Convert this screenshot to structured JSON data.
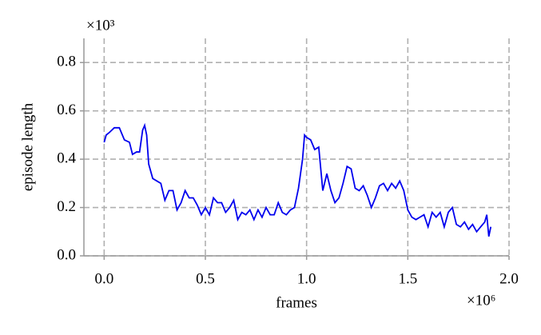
{
  "chart_data": {
    "type": "line",
    "xlabel": "frames",
    "ylabel": "episode length",
    "x_multiplier": "×10⁶",
    "y_multiplier": "×10³",
    "xlim": [
      -0.1,
      2.0
    ],
    "ylim": [
      0,
      0.9
    ],
    "xticks": [
      {
        "value": 0,
        "label": "0.0"
      },
      0.5,
      {
        "value": 1,
        "label": "1.0"
      },
      1.5,
      {
        "value": 2,
        "label": "2.0"
      }
    ],
    "yticks": [
      {
        "value": 0,
        "label": "0.0"
      },
      0.2,
      0.4,
      0.6,
      0.8
    ],
    "grid": true,
    "series": [
      {
        "color": "#0000ee",
        "x": [
          0.0,
          0.01,
          0.025,
          0.05,
          0.075,
          0.1,
          0.125,
          0.14,
          0.16,
          0.175,
          0.19,
          0.2,
          0.21,
          0.22,
          0.24,
          0.26,
          0.28,
          0.3,
          0.32,
          0.34,
          0.36,
          0.38,
          0.4,
          0.42,
          0.44,
          0.46,
          0.48,
          0.5,
          0.52,
          0.54,
          0.56,
          0.58,
          0.6,
          0.62,
          0.64,
          0.66,
          0.68,
          0.7,
          0.72,
          0.74,
          0.76,
          0.78,
          0.8,
          0.82,
          0.84,
          0.86,
          0.88,
          0.9,
          0.92,
          0.94,
          0.96,
          0.98,
          0.99,
          1.0,
          1.02,
          1.04,
          1.06,
          1.08,
          1.1,
          1.12,
          1.14,
          1.16,
          1.18,
          1.2,
          1.22,
          1.24,
          1.26,
          1.28,
          1.3,
          1.32,
          1.34,
          1.36,
          1.38,
          1.4,
          1.42,
          1.44,
          1.46,
          1.48,
          1.5,
          1.52,
          1.54,
          1.56,
          1.58,
          1.6,
          1.62,
          1.64,
          1.66,
          1.68,
          1.7,
          1.72,
          1.74,
          1.76,
          1.78,
          1.8,
          1.82,
          1.84,
          1.86,
          1.88,
          1.89,
          1.9,
          1.91
        ],
        "values": [
          0.47,
          0.5,
          0.51,
          0.53,
          0.53,
          0.48,
          0.47,
          0.42,
          0.43,
          0.43,
          0.52,
          0.54,
          0.5,
          0.38,
          0.32,
          0.31,
          0.3,
          0.23,
          0.27,
          0.27,
          0.19,
          0.22,
          0.27,
          0.24,
          0.24,
          0.21,
          0.17,
          0.2,
          0.17,
          0.24,
          0.22,
          0.22,
          0.18,
          0.2,
          0.23,
          0.15,
          0.18,
          0.17,
          0.19,
          0.15,
          0.19,
          0.16,
          0.2,
          0.17,
          0.17,
          0.22,
          0.18,
          0.17,
          0.19,
          0.2,
          0.28,
          0.4,
          0.5,
          0.49,
          0.48,
          0.44,
          0.45,
          0.27,
          0.34,
          0.27,
          0.22,
          0.24,
          0.3,
          0.37,
          0.36,
          0.28,
          0.27,
          0.29,
          0.25,
          0.2,
          0.24,
          0.29,
          0.3,
          0.27,
          0.3,
          0.28,
          0.31,
          0.27,
          0.19,
          0.16,
          0.15,
          0.16,
          0.17,
          0.12,
          0.18,
          0.16,
          0.18,
          0.12,
          0.18,
          0.2,
          0.13,
          0.12,
          0.14,
          0.11,
          0.13,
          0.1,
          0.12,
          0.14,
          0.17,
          0.08,
          0.12
        ]
      }
    ]
  }
}
